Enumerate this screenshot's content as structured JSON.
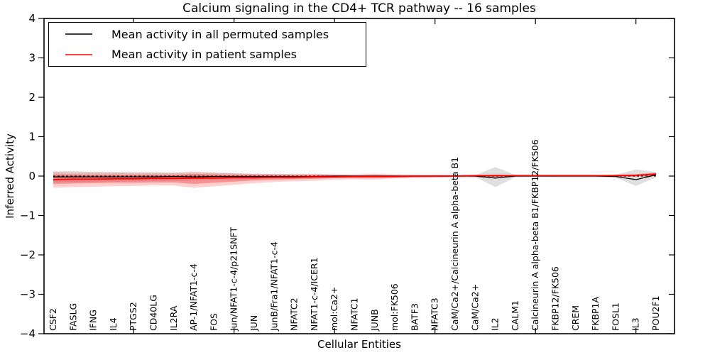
{
  "accent_colors": {
    "permuted_line": "#000000",
    "patient_line": "#ff0000",
    "permuted_band": "#aaaaaa",
    "patient_band_outer": "#ff2a2a",
    "patient_band_inner": "#ee2c2c"
  },
  "chart_data": {
    "type": "line",
    "title": "Calcium signaling in the CD4+ TCR pathway -- 16 samples",
    "xlabel": "Cellular Entities",
    "ylabel": "Inferred Activity",
    "ylim": [
      -4,
      4
    ],
    "grid": false,
    "legend_position": "upper left",
    "ytick_values": [
      4,
      3,
      2,
      1,
      0,
      -1,
      -2,
      -3,
      -4
    ],
    "ytick_labels": [
      "4",
      "3",
      "2",
      "1",
      "0",
      "−1",
      "−2",
      "−3",
      "−4"
    ],
    "xtick_major_indices": [
      4,
      9,
      14,
      19,
      24,
      29
    ],
    "categories": [
      "CSF2",
      "FASLG",
      "IFNG",
      "IL4",
      "PTGS2",
      "CD40LG",
      "IL2RA",
      "AP-1/NFAT1-c-4",
      "FOS",
      "Jun/NFAT1-c-4/p21SNFT",
      "JUN",
      "JunB/Fra1/NFAT1-c-4",
      "NFATC2",
      "NFAT1-c-4/ICER1",
      "mol:Ca2+",
      "NFATC1",
      "JUNB",
      "mol:FK506",
      "BATF3",
      "NFATC3",
      "CaM/Ca2+/Calcineurin A alpha-beta B1",
      "CaM/Ca2+",
      "IL2",
      "CALM1",
      "Calcineurin A alpha-beta B1/FKBP12/FK506",
      "FKBP12/FK506",
      "CREM",
      "FKBP1A",
      "FOSL1",
      "IL3",
      "POU2F1"
    ],
    "baseline": {
      "y": 0,
      "style": "dashed",
      "color": "#000000"
    },
    "series": [
      {
        "name": "Mean activity in all permuted samples",
        "color": "#000000",
        "values": [
          -0.02,
          -0.02,
          -0.02,
          -0.02,
          -0.02,
          -0.02,
          -0.01,
          -0.02,
          -0.01,
          -0.01,
          -0.01,
          -0.01,
          -0.01,
          -0.01,
          0,
          0,
          0,
          0,
          0,
          0,
          0,
          0,
          -0.05,
          0,
          0,
          0,
          0,
          0,
          -0.01,
          -0.09,
          0.03
        ]
      },
      {
        "name": "Mean activity in patient samples",
        "color": "#ff0000",
        "values": [
          -0.09,
          -0.08,
          -0.08,
          -0.07,
          -0.07,
          -0.06,
          -0.06,
          -0.05,
          -0.05,
          -0.04,
          -0.04,
          -0.03,
          -0.03,
          -0.02,
          -0.02,
          -0.01,
          -0.01,
          -0.01,
          0,
          0,
          0,
          0.01,
          0.01,
          0.01,
          0.01,
          0.01,
          0.01,
          0.01,
          0.01,
          0.02,
          0.05
        ]
      }
    ],
    "bands": [
      {
        "name": "permuted-range-band",
        "color": "#aaaaaa",
        "opacity": 0.38,
        "upper": [
          0.12,
          0.12,
          0.11,
          0.11,
          0.1,
          0.1,
          0.09,
          0.09,
          0.08,
          0.07,
          0.06,
          0.06,
          0.05,
          0.04,
          0.04,
          0.03,
          0.03,
          0.03,
          0.02,
          0.02,
          0.02,
          0.02,
          0.23,
          0.03,
          0.02,
          0.02,
          0.02,
          0.02,
          0.03,
          0.17,
          0.11
        ],
        "lower": [
          -0.16,
          -0.15,
          -0.14,
          -0.14,
          -0.13,
          -0.12,
          -0.12,
          -0.11,
          -0.1,
          -0.09,
          -0.08,
          -0.07,
          -0.06,
          -0.05,
          -0.04,
          -0.04,
          -0.04,
          -0.03,
          -0.03,
          -0.03,
          -0.02,
          -0.02,
          -0.28,
          -0.03,
          -0.02,
          -0.03,
          -0.03,
          -0.03,
          -0.04,
          -0.25,
          -0.03
        ]
      },
      {
        "name": "patient-range-band-outer",
        "color": "#ff2a2a",
        "opacity": 0.22,
        "upper": [
          0.1,
          0.09,
          0.09,
          0.08,
          0.08,
          0.08,
          0.08,
          0.11,
          0.09,
          0.07,
          0.06,
          0.05,
          0.05,
          0.06,
          0.04,
          0.04,
          0.06,
          0.04,
          0.03,
          0.03,
          0.03,
          0.03,
          0.04,
          0.03,
          0.03,
          0.03,
          0.03,
          0.03,
          0.04,
          0.05,
          0.09
        ],
        "lower": [
          -0.3,
          -0.28,
          -0.27,
          -0.26,
          -0.25,
          -0.24,
          -0.24,
          -0.3,
          -0.26,
          -0.22,
          -0.18,
          -0.15,
          -0.13,
          -0.12,
          -0.09,
          -0.08,
          -0.09,
          -0.06,
          -0.05,
          -0.04,
          -0.03,
          -0.03,
          -0.03,
          -0.02,
          -0.02,
          -0.02,
          -0.02,
          -0.02,
          -0.02,
          -0.02,
          0.0
        ],
        "lower_note": "outer shaded range of patient samples"
      },
      {
        "name": "patient-range-band-inner",
        "color": "#ee2c2c",
        "opacity": 0.38,
        "upper": [
          0.04,
          0.04,
          0.03,
          0.03,
          0.03,
          0.03,
          0.03,
          0.05,
          0.04,
          0.03,
          0.03,
          0.02,
          0.02,
          0.03,
          0.02,
          0.02,
          0.03,
          0.02,
          0.02,
          0.02,
          0.02,
          0.02,
          0.03,
          0.02,
          0.02,
          0.02,
          0.02,
          0.02,
          0.03,
          0.04,
          0.07
        ],
        "lower": [
          -0.2,
          -0.19,
          -0.18,
          -0.17,
          -0.17,
          -0.16,
          -0.16,
          -0.2,
          -0.17,
          -0.14,
          -0.11,
          -0.09,
          -0.08,
          -0.07,
          -0.05,
          -0.05,
          -0.05,
          -0.04,
          -0.03,
          -0.02,
          -0.02,
          -0.02,
          -0.02,
          -0.01,
          -0.01,
          -0.01,
          -0.01,
          -0.01,
          -0.01,
          -0.01,
          0.01
        ]
      }
    ]
  }
}
